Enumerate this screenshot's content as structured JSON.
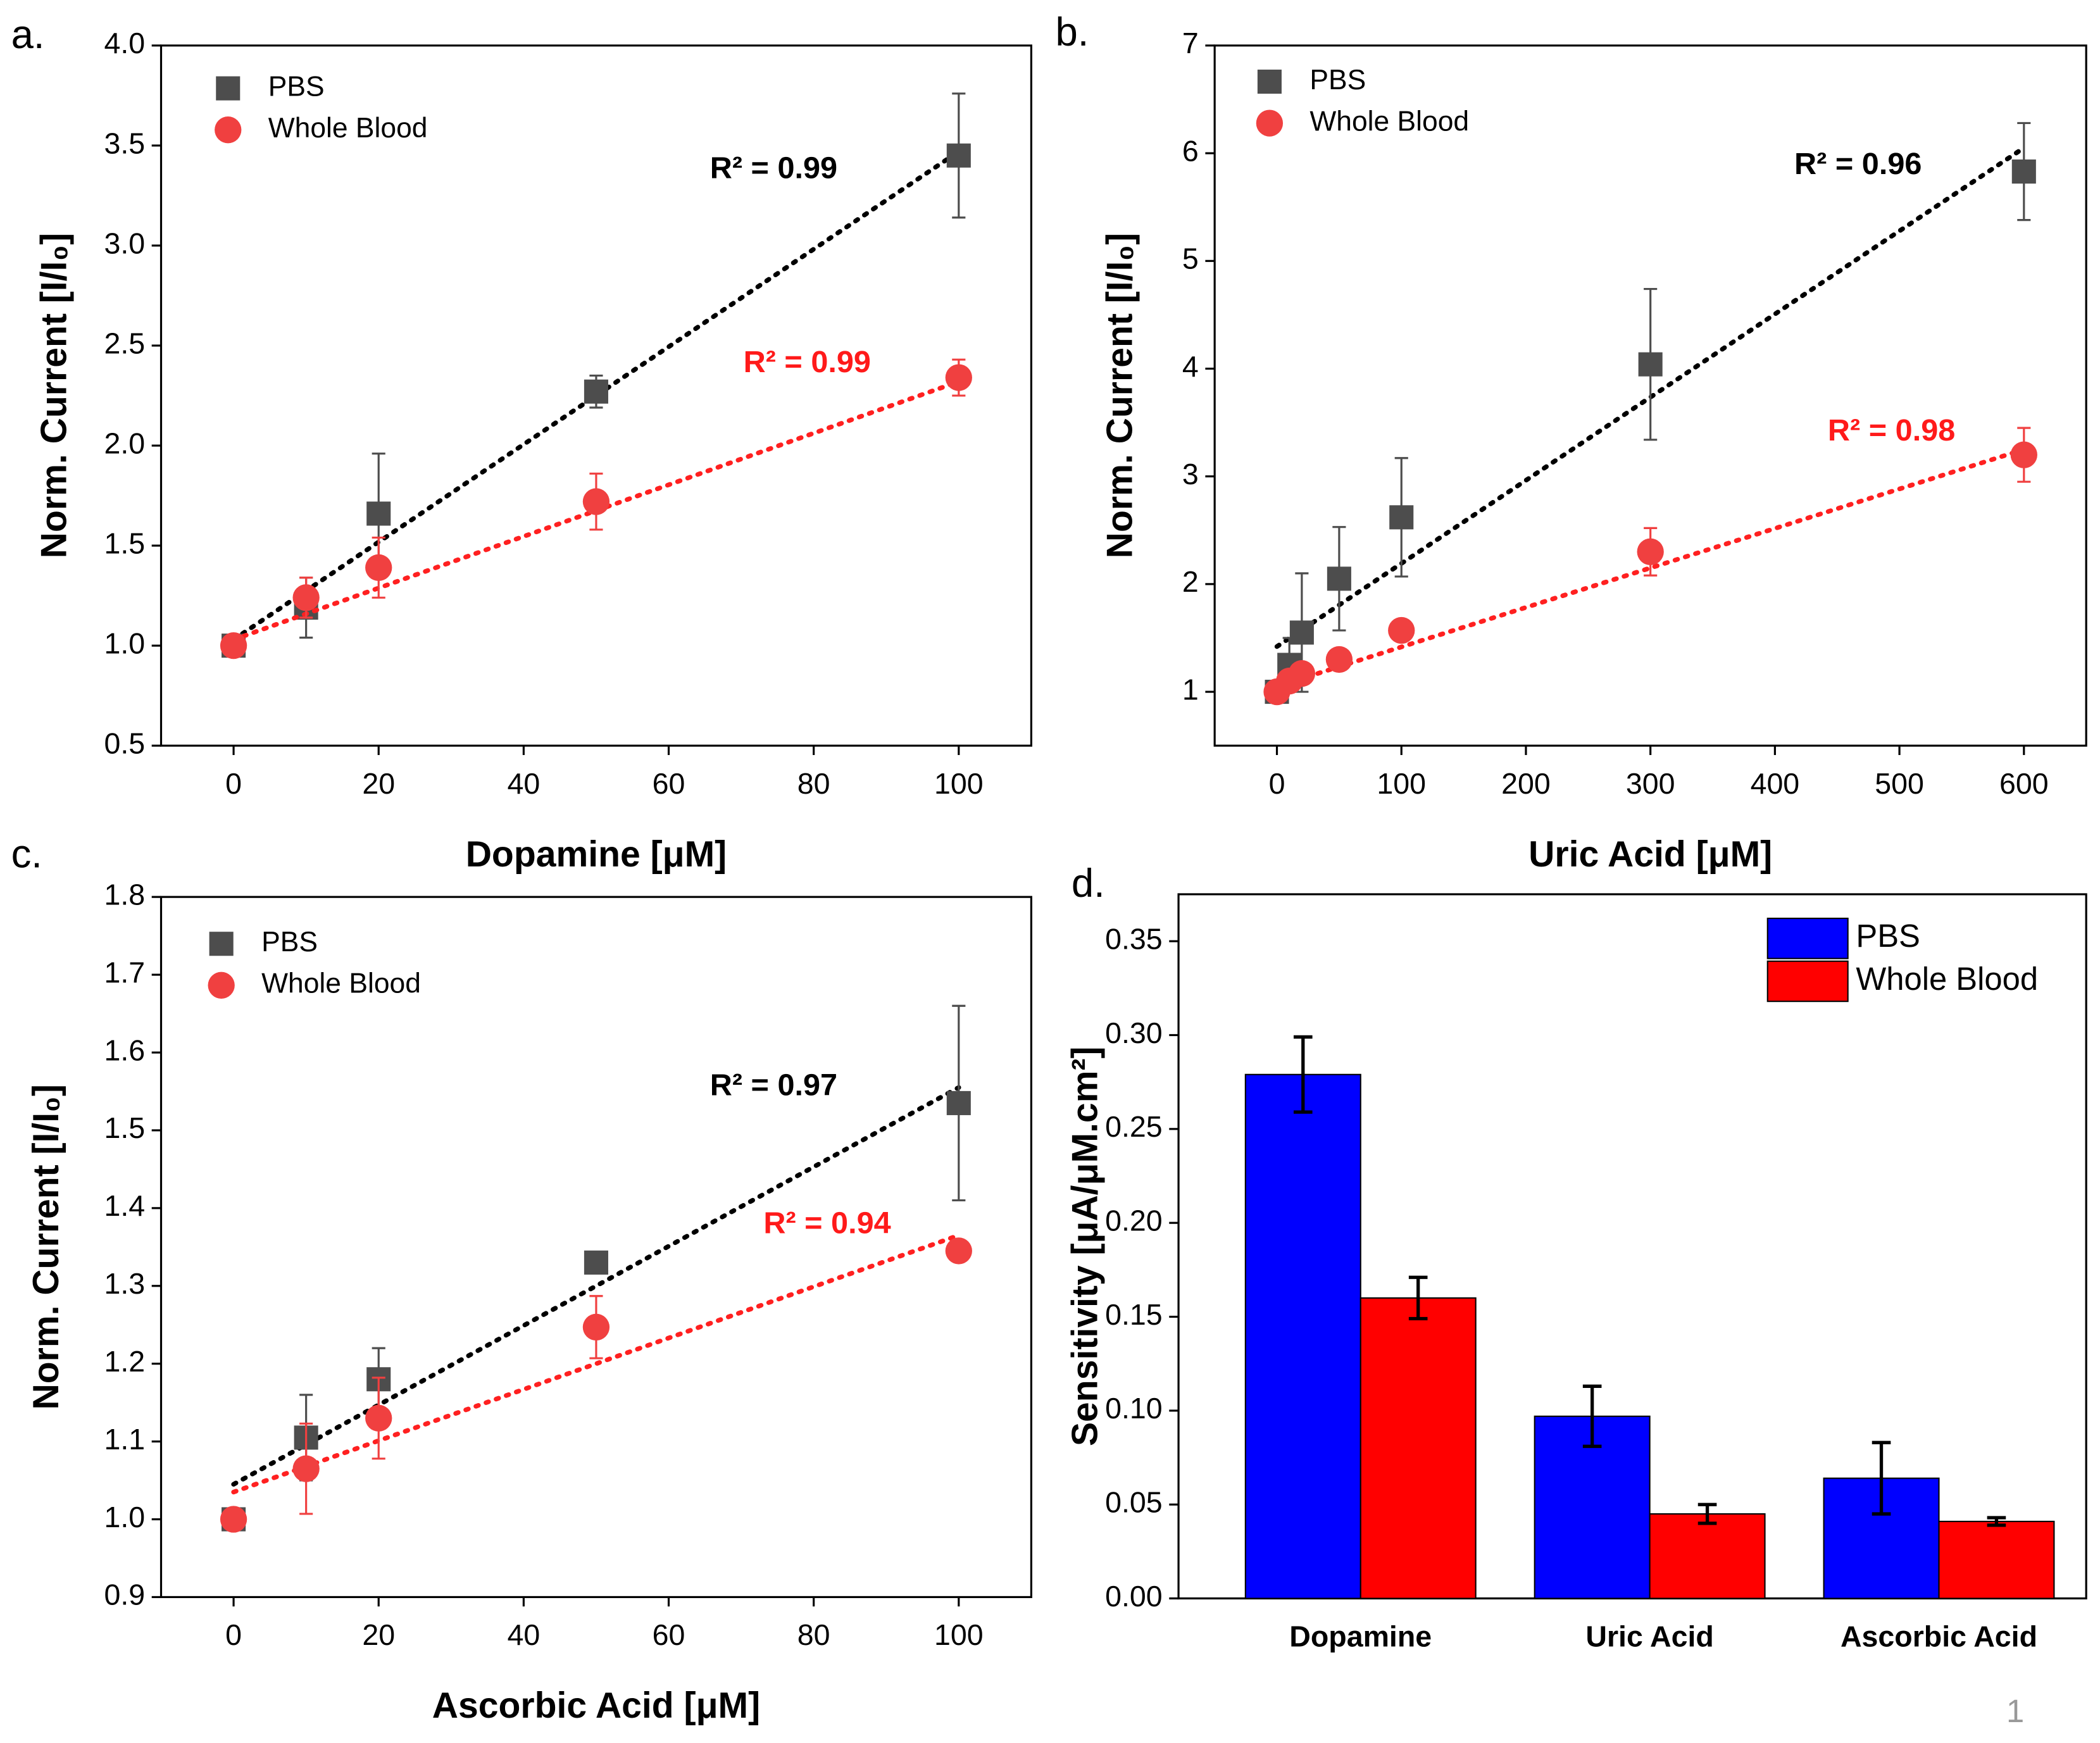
{
  "chart_data": [
    {
      "type": "scatter",
      "panel_label": "a.",
      "x_label": "Dopamine [μM]",
      "y_label": "Norm. Current [I/I₀]",
      "xlim": [
        -10,
        110
      ],
      "xticks": [
        0,
        20,
        40,
        60,
        80,
        100
      ],
      "ylim": [
        0.5,
        4.0
      ],
      "yticks": [
        0.5,
        {
          "value": 1,
          "label": "1.0"
        },
        1.5,
        {
          "value": 2,
          "label": "2.0"
        },
        2.5,
        {
          "value": 3,
          "label": "3.0"
        },
        3.5,
        {
          "value": 4,
          "label": "4.0"
        }
      ],
      "series": [
        {
          "name": "PBS",
          "color": "#4d4d4d",
          "marker": "square",
          "x": [
            0,
            10,
            20,
            50,
            100
          ],
          "values": [
            1.0,
            1.19,
            1.66,
            2.27,
            3.45
          ],
          "errors": [
            0.03,
            0.15,
            0.3,
            0.08,
            0.31
          ],
          "fit": {
            "x": [
              0,
              100
            ],
            "y": [
              1.03,
              3.47
            ]
          }
        },
        {
          "name": "Whole Blood",
          "color": "#f04040",
          "marker": "circle",
          "x": [
            0,
            10,
            20,
            50,
            100
          ],
          "values": [
            1.0,
            1.24,
            1.39,
            1.72,
            2.34
          ],
          "errors": [
            0.03,
            0.1,
            0.15,
            0.14,
            0.09
          ],
          "fit": {
            "x": [
              0,
              100
            ],
            "y": [
              1.03,
              2.32
            ]
          }
        }
      ],
      "annotations": [
        {
          "text": "R² = 0.99",
          "color": "#000000"
        },
        {
          "text": "R² = 0.99",
          "color": "#ff1a1a"
        }
      ]
    },
    {
      "type": "scatter",
      "panel_label": "b.",
      "x_label": "Uric Acid [μM]",
      "y_label": "Norm. Current [I/I₀]",
      "xlim": [
        -50,
        650
      ],
      "xticks": [
        0,
        100,
        200,
        300,
        400,
        500,
        600
      ],
      "ylim": [
        0.5,
        7
      ],
      "yticks": [
        1,
        2,
        3,
        4,
        5,
        6,
        7
      ],
      "series": [
        {
          "name": "PBS",
          "color": "#4d4d4d",
          "marker": "square",
          "x": [
            0,
            10,
            20,
            50,
            100,
            300,
            600
          ],
          "values": [
            1.0,
            1.25,
            1.55,
            2.05,
            2.62,
            4.04,
            5.83
          ],
          "errors": [
            0.05,
            0.25,
            0.55,
            0.48,
            0.55,
            0.7,
            0.45
          ],
          "fit": {
            "x": [
              0,
              600
            ],
            "y": [
              1.42,
              6.05
            ]
          }
        },
        {
          "name": "Whole Blood",
          "color": "#f04040",
          "marker": "circle",
          "x": [
            0,
            10,
            20,
            50,
            100,
            300,
            600
          ],
          "values": [
            1.0,
            1.1,
            1.17,
            1.3,
            1.57,
            2.3,
            3.2
          ],
          "errors": [
            0.03,
            0.05,
            0.05,
            0.05,
            0.05,
            0.22,
            0.25
          ],
          "fit": {
            "x": [
              0,
              600
            ],
            "y": [
              1.05,
              3.25
            ]
          }
        }
      ],
      "annotations": [
        {
          "text": "R² = 0.96",
          "color": "#000000"
        },
        {
          "text": "R² = 0.98",
          "color": "#ff1a1a"
        }
      ]
    },
    {
      "type": "scatter",
      "panel_label": "c.",
      "x_label": "Ascorbic Acid [μM]",
      "y_label": "Norm. Current [I/I₀]",
      "xlim": [
        -10,
        110
      ],
      "xticks": [
        0,
        20,
        40,
        60,
        80,
        100
      ],
      "ylim": [
        0.9,
        1.8
      ],
      "yticks": [
        0.9,
        {
          "value": 1,
          "label": "1.0"
        },
        1.1,
        1.2,
        1.3,
        1.4,
        1.5,
        1.6,
        1.7,
        1.8
      ],
      "series": [
        {
          "name": "PBS",
          "color": "#4d4d4d",
          "marker": "square",
          "x": [
            0,
            10,
            20,
            50,
            100
          ],
          "values": [
            1.0,
            1.105,
            1.18,
            1.33,
            1.535
          ],
          "errors": [
            0.01,
            0.055,
            0.04,
            0.01,
            0.125
          ],
          "fit": {
            "x": [
              0,
              100
            ],
            "y": [
              1.045,
              1.555
            ]
          }
        },
        {
          "name": "Whole Blood",
          "color": "#f04040",
          "marker": "circle",
          "x": [
            0,
            10,
            20,
            50,
            100
          ],
          "values": [
            1.0,
            1.065,
            1.13,
            1.247,
            1.345
          ],
          "errors": [
            0.01,
            0.058,
            0.052,
            0.04,
            0.01
          ],
          "fit": {
            "x": [
              0,
              100
            ],
            "y": [
              1.035,
              1.365
            ]
          }
        }
      ],
      "annotations": [
        {
          "text": "R² = 0.97",
          "color": "#000000"
        },
        {
          "text": "R² = 0.94",
          "color": "#ff1a1a"
        }
      ]
    },
    {
      "type": "bar",
      "panel_label": "d.",
      "y_label": "Sensitivity [μA/μM.cm²]",
      "categories": [
        "Dopamine",
        "Uric Acid",
        "Ascorbic Acid"
      ],
      "ylim": [
        0,
        0.375
      ],
      "yticks": [
        {
          "value": 0,
          "label": "0.00"
        },
        {
          "value": 0.05,
          "label": "0.05"
        },
        {
          "value": 0.1,
          "label": "0.10"
        },
        {
          "value": 0.15,
          "label": "0.15"
        },
        {
          "value": 0.2,
          "label": "0.20"
        },
        {
          "value": 0.25,
          "label": "0.25"
        },
        {
          "value": 0.3,
          "label": "0.30"
        },
        {
          "value": 0.35,
          "label": "0.35"
        }
      ],
      "series": [
        {
          "name": "PBS",
          "color": "#0000ff",
          "values": [
            0.279,
            0.097,
            0.064
          ],
          "errors": [
            0.02,
            0.016,
            0.019
          ]
        },
        {
          "name": "Whole Blood",
          "color": "#ff0000",
          "values": [
            0.16,
            0.045,
            0.041
          ],
          "errors": [
            0.011,
            0.005,
            0.002
          ]
        }
      ]
    }
  ],
  "page_number": "1"
}
